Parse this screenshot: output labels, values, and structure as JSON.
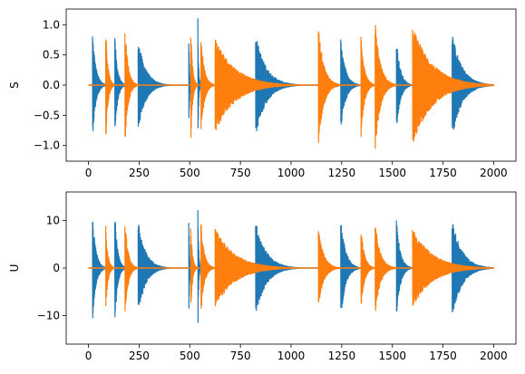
{
  "chart_data": [
    {
      "type": "line",
      "title": "",
      "xlabel": "",
      "ylabel": "S",
      "xlim": [
        -110,
        2110
      ],
      "ylim": [
        -1.26,
        1.26
      ],
      "xticks": [
        0,
        250,
        500,
        750,
        1000,
        1250,
        1500,
        1750,
        2000
      ],
      "yticks": [
        -1.0,
        -0.5,
        0.0,
        0.5,
        1.0
      ],
      "ytick_labels": [
        "−1.0",
        "−0.5",
        "0.0",
        "0.5",
        "1.0"
      ],
      "grid": false,
      "legend": "none",
      "series": [
        {
          "color": "#1f77b4",
          "bursts": [
            {
              "start": 20,
              "end": 90,
              "amp": 0.88
            },
            {
              "start": 130,
              "end": 185,
              "amp": 0.85
            },
            {
              "start": 245,
              "end": 400,
              "amp": 0.78
            },
            {
              "start": 495,
              "end": 510,
              "amp": 0.9
            },
            {
              "start": 540,
              "end": 555,
              "amp": 1.15
            },
            {
              "start": 825,
              "end": 1040,
              "amp": 0.87
            },
            {
              "start": 1245,
              "end": 1345,
              "amp": 0.77
            },
            {
              "start": 1520,
              "end": 1600,
              "amp": 0.8
            },
            {
              "start": 1795,
              "end": 2000,
              "amp": 0.88
            }
          ]
        },
        {
          "color": "#ff7f0e",
          "bursts": [
            {
              "start": 85,
              "end": 130,
              "amp": 1.0
            },
            {
              "start": 180,
              "end": 245,
              "amp": 1.0
            },
            {
              "start": 505,
              "end": 540,
              "amp": 1.0
            },
            {
              "start": 555,
              "end": 625,
              "amp": 0.85
            },
            {
              "start": 625,
              "end": 1030,
              "amp": 0.8
            },
            {
              "start": 1135,
              "end": 1245,
              "amp": 1.0
            },
            {
              "start": 1345,
              "end": 1415,
              "amp": 0.9
            },
            {
              "start": 1415,
              "end": 1520,
              "amp": 1.1
            },
            {
              "start": 1600,
              "end": 2000,
              "amp": 1.0
            }
          ]
        }
      ]
    },
    {
      "type": "line",
      "title": "",
      "xlabel": "",
      "ylabel": "U",
      "xlim": [
        -110,
        2110
      ],
      "ylim": [
        -16,
        16
      ],
      "xticks": [
        0,
        250,
        500,
        750,
        1000,
        1250,
        1500,
        1750,
        2000
      ],
      "yticks": [
        -10,
        0,
        10
      ],
      "ytick_labels": [
        "−10",
        "0",
        "10"
      ],
      "grid": false,
      "legend": "none",
      "series": [
        {
          "color": "#1f77b4",
          "bursts": [
            {
              "start": 20,
              "end": 90,
              "amp": 11.5
            },
            {
              "start": 130,
              "end": 185,
              "amp": 12.5
            },
            {
              "start": 245,
              "end": 400,
              "amp": 10.0
            },
            {
              "start": 495,
              "end": 510,
              "amp": 12.0
            },
            {
              "start": 540,
              "end": 555,
              "amp": 15.5
            },
            {
              "start": 825,
              "end": 1040,
              "amp": 10.2
            },
            {
              "start": 1245,
              "end": 1345,
              "amp": 11.0
            },
            {
              "start": 1520,
              "end": 1600,
              "amp": 10.5
            },
            {
              "start": 1795,
              "end": 2000,
              "amp": 10.5
            }
          ]
        },
        {
          "color": "#ff7f0e",
          "bursts": [
            {
              "start": 85,
              "end": 130,
              "amp": 9.0
            },
            {
              "start": 180,
              "end": 245,
              "amp": 10.5
            },
            {
              "start": 505,
              "end": 540,
              "amp": 9.0
            },
            {
              "start": 555,
              "end": 625,
              "amp": 10.0
            },
            {
              "start": 625,
              "end": 1030,
              "amp": 8.5
            },
            {
              "start": 1135,
              "end": 1245,
              "amp": 8.5
            },
            {
              "start": 1345,
              "end": 1415,
              "amp": 9.0
            },
            {
              "start": 1415,
              "end": 1520,
              "amp": 10.0
            },
            {
              "start": 1600,
              "end": 2000,
              "amp": 8.5
            }
          ]
        }
      ]
    }
  ]
}
